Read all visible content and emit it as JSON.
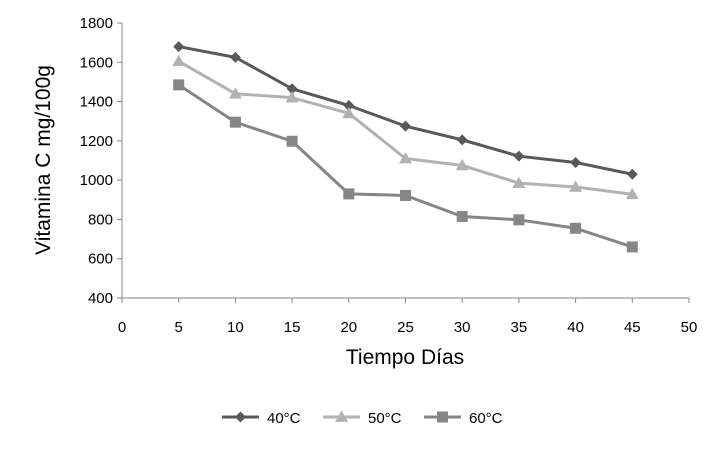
{
  "chart_data": {
    "type": "line",
    "title": "",
    "xlabel": "Tiempo Días",
    "ylabel": "Vitamina C mg/100g",
    "xlim": [
      0,
      50
    ],
    "ylim": [
      400,
      1800
    ],
    "xticks": [
      "0",
      "5",
      "10",
      "15",
      "20",
      "25",
      "30",
      "35",
      "40",
      "45",
      "50"
    ],
    "yticks": [
      "400",
      "600",
      "800",
      "1000",
      "1200",
      "1400",
      "1600",
      "1800"
    ],
    "grid": false,
    "legend_position": "bottom",
    "x": [
      5,
      10,
      15,
      20,
      25,
      30,
      35,
      40,
      45
    ],
    "series": [
      {
        "name": "40°C",
        "marker": "diamond",
        "color": "#595959",
        "values": [
          1680,
          1625,
          1465,
          1380,
          1275,
          1205,
          1122,
          1090,
          1030
        ]
      },
      {
        "name": "50°C",
        "marker": "triangle",
        "color": "#b2b2b2",
        "values": [
          1605,
          1440,
          1420,
          1340,
          1110,
          1075,
          985,
          965,
          928
        ]
      },
      {
        "name": "60°C",
        "marker": "square",
        "color": "#868686",
        "values": [
          1485,
          1295,
          1198,
          930,
          922,
          815,
          798,
          755,
          660
        ]
      }
    ]
  }
}
